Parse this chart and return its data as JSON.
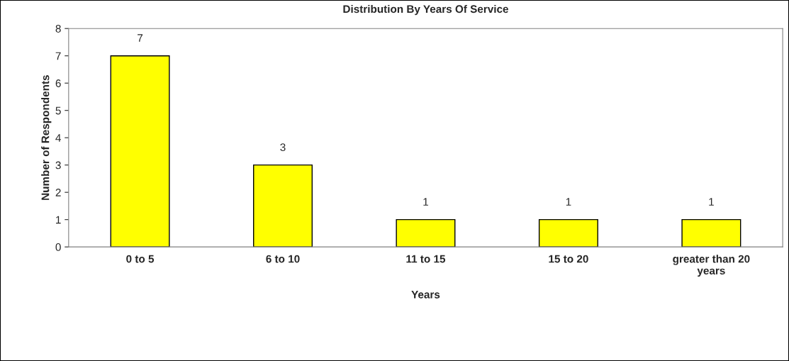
{
  "chart_data": {
    "type": "bar",
    "title": "Distribution By Years Of Service",
    "xlabel": "Years",
    "ylabel": "Number of Respondents",
    "categories": [
      "0 to 5",
      "6 to 10",
      "11 to 15",
      "15 to 20",
      "greater than 20\nyears"
    ],
    "values": [
      7,
      3,
      1,
      1,
      1
    ],
    "color": "#ffff00",
    "ylim": [
      0,
      8
    ],
    "yticks": [
      0,
      1,
      2,
      3,
      4,
      5,
      6,
      7,
      8
    ],
    "grid": false,
    "data_labels": true
  }
}
